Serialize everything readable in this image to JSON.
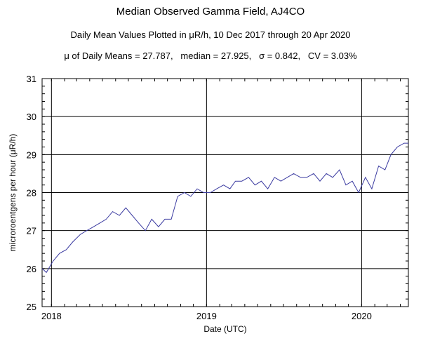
{
  "header": {
    "title": "Median Observed Gamma Field, AJ4CO",
    "subtitle": "Daily Mean Values Plotted in μR/h, 10 Dec 2017 through 20 Apr 2020",
    "stats": "μ of Daily Means = 27.787,   median = 27.925,   σ = 0.842,   CV = 3.03%"
  },
  "chart_data": {
    "type": "line",
    "title": "Median Observed Gamma Field, AJ4CO",
    "xlabel": "Date (UTC)",
    "ylabel": "microroentgens per hour (μR/h)",
    "xlim": [
      "2017-12-10",
      "2020-04-20"
    ],
    "ylim": [
      25,
      31
    ],
    "yticks": [
      25,
      26,
      27,
      28,
      29,
      30,
      31
    ],
    "xticks": [
      {
        "date": "2018-01-01",
        "label": "2018"
      },
      {
        "date": "2019-01-01",
        "label": "2019"
      },
      {
        "date": "2020-01-01",
        "label": "2020"
      }
    ],
    "grid": true,
    "line_color": "#3a3aa0",
    "series": [
      {
        "x": [
          "2017-12-10",
          "2017-12-20",
          "2018-01-05",
          "2018-01-20",
          "2018-02-05",
          "2018-02-20",
          "2018-03-10",
          "2018-03-25",
          "2018-04-10",
          "2018-04-25",
          "2018-05-10",
          "2018-05-25",
          "2018-06-10",
          "2018-06-25",
          "2018-07-10",
          "2018-07-25",
          "2018-08-10",
          "2018-08-25",
          "2018-09-10",
          "2018-09-25",
          "2018-10-10",
          "2018-10-25",
          "2018-11-10",
          "2018-11-25",
          "2018-12-10",
          "2018-12-25",
          "2019-01-10",
          "2019-01-25",
          "2019-02-10",
          "2019-02-25",
          "2019-03-10",
          "2019-03-25",
          "2019-04-10",
          "2019-04-25",
          "2019-05-10",
          "2019-05-25",
          "2019-06-10",
          "2019-06-25",
          "2019-07-10",
          "2019-07-25",
          "2019-08-10",
          "2019-08-25",
          "2019-09-10",
          "2019-09-25",
          "2019-10-10",
          "2019-10-25",
          "2019-11-10",
          "2019-11-25",
          "2019-12-10",
          "2019-12-25",
          "2020-01-10",
          "2020-01-25",
          "2020-02-10",
          "2020-02-25",
          "2020-03-10",
          "2020-03-25",
          "2020-04-10",
          "2020-04-20"
        ],
        "values": [
          26.0,
          25.9,
          26.2,
          26.4,
          26.5,
          26.7,
          26.9,
          27.0,
          27.1,
          27.2,
          27.3,
          27.5,
          27.4,
          27.6,
          27.4,
          27.2,
          27.0,
          27.3,
          27.1,
          27.3,
          27.3,
          27.9,
          28.0,
          27.9,
          28.1,
          28.0,
          28.0,
          28.1,
          28.2,
          28.1,
          28.3,
          28.3,
          28.4,
          28.2,
          28.3,
          28.1,
          28.4,
          28.3,
          28.4,
          28.5,
          28.4,
          28.4,
          28.5,
          28.3,
          28.5,
          28.4,
          28.6,
          28.2,
          28.3,
          28.0,
          28.4,
          28.1,
          28.7,
          28.6,
          29.0,
          29.2,
          29.3,
          29.3
        ]
      }
    ]
  },
  "annotations": {
    "y_axis_label_mu": "μ"
  }
}
